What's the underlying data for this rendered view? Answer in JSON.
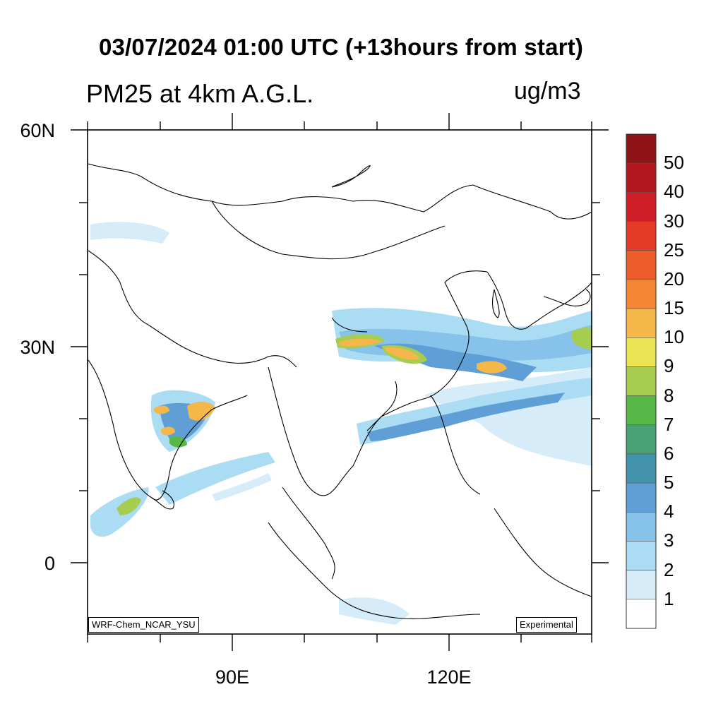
{
  "title": "03/07/2024 01:00 UTC (+13hours from start)",
  "subtitle": "PM25 at 4km A.G.L.",
  "units": "ug/m3",
  "axes": {
    "lat_labels": [
      "60N",
      "30N",
      "0"
    ],
    "lon_labels": [
      "90E",
      "120E"
    ]
  },
  "credits": {
    "model": "WRF-Chem_NCAR_YSU",
    "status": "Experimental"
  },
  "colorbar": {
    "labels": [
      "50",
      "40",
      "30",
      "25",
      "20",
      "15",
      "10",
      "9",
      "8",
      "7",
      "6",
      "5",
      "4",
      "3",
      "2",
      "1"
    ],
    "colors": [
      "#8e1418",
      "#b2171f",
      "#d01f26",
      "#e43a26",
      "#ec5c2b",
      "#f48533",
      "#f5b64a",
      "#ebe453",
      "#a6cc50",
      "#57b848",
      "#48a173",
      "#4493ad",
      "#5f9fd6",
      "#86c2ea",
      "#aadcf3",
      "#d6edf9",
      "#ffffff"
    ]
  }
}
